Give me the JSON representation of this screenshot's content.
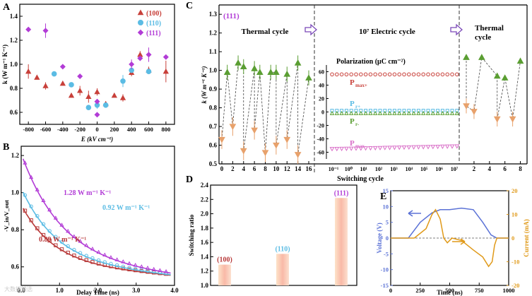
{
  "watermark": "大数据精选",
  "colors": {
    "red": "#c8403a",
    "cyan": "#5bbce4",
    "magenta": "#b23cd6",
    "green": "#5a9e32",
    "orange": "#e8a16b",
    "darkred": "#b83a3a",
    "pink": "#d96fc8",
    "blue": "#5b72d6",
    "amber": "#e09a1a",
    "axis": "#000000",
    "grid_dash": "#333333"
  },
  "chart_data": [
    {
      "panel": "A",
      "type": "scatter",
      "xlabel": "E (kV cm⁻¹)",
      "ylabel": "k (W m⁻¹ K⁻¹)",
      "xlim": [
        -900,
        900
      ],
      "ylim": [
        0.5,
        1.5
      ],
      "xticks": [
        -800,
        -600,
        -400,
        -200,
        0,
        200,
        400,
        600,
        800
      ],
      "yticks": [
        0.6,
        0.8,
        1.0,
        1.2,
        1.4
      ],
      "legend": [
        "(100)",
        "(110)",
        "(111)"
      ],
      "series": [
        {
          "name": "(100)",
          "marker": "triangle",
          "color": "red",
          "points": [
            [
              -800,
              0.94,
              0.06
            ],
            [
              -700,
              0.89,
              0
            ],
            [
              -600,
              0.82,
              0.03
            ],
            [
              -400,
              0.84,
              0
            ],
            [
              -300,
              0.74,
              0
            ],
            [
              -200,
              0.78,
              0.04
            ],
            [
              -100,
              0.73,
              0.05
            ],
            [
              0,
              0.77,
              0.03
            ],
            [
              100,
              0.67,
              0
            ],
            [
              200,
              0.74,
              0
            ],
            [
              300,
              0.72,
              0.03
            ],
            [
              400,
              0.93,
              0.03
            ],
            [
              500,
              1.08,
              0.03
            ],
            [
              600,
              0.95,
              0.03
            ],
            [
              800,
              0.94,
              0.09
            ]
          ]
        },
        {
          "name": "(110)",
          "marker": "circle",
          "color": "cyan",
          "points": [
            [
              -500,
              0.92,
              0
            ],
            [
              -300,
              0.83,
              0
            ],
            [
              -100,
              0.64,
              0
            ],
            [
              0,
              0.66,
              0.03
            ],
            [
              100,
              0.66,
              0
            ],
            [
              300,
              0.86,
              0.05
            ],
            [
              400,
              0.95,
              0
            ],
            [
              600,
              0.94,
              0
            ]
          ]
        },
        {
          "name": "(111)",
          "marker": "diamond",
          "color": "magenta",
          "points": [
            [
              -800,
              1.29,
              0
            ],
            [
              -600,
              1.28,
              0.06
            ],
            [
              -400,
              0.98,
              0
            ],
            [
              -200,
              0.9,
              0
            ],
            [
              0,
              0.58,
              0
            ],
            [
              0,
              0.69,
              0
            ],
            [
              400,
              1.0,
              0.04
            ],
            [
              500,
              1.05,
              0
            ],
            [
              600,
              1.08,
              0.06
            ],
            [
              800,
              1.06,
              0
            ]
          ]
        }
      ]
    },
    {
      "panel": "B",
      "type": "line",
      "xlabel": "Delay Time (ns)",
      "ylabel": "-V_in/V_out",
      "xlim": [
        0,
        4
      ],
      "ylim": [
        0.5,
        1.25
      ],
      "xticks": [
        0.0,
        1.0,
        2.0,
        3.0,
        4.0
      ],
      "yticks": [
        0.6,
        0.8,
        1.0,
        1.2
      ],
      "series": [
        {
          "name": "0.89 W m⁻¹ K⁻¹",
          "marker": "square",
          "color": "darkred",
          "a": 0.315,
          "b": 0.18,
          "c": 1.2,
          "d": 0.07
        },
        {
          "name": "0.92 W m⁻¹ K⁻¹",
          "marker": "circle",
          "color": "cyan",
          "a": 0.4,
          "b": 0.2,
          "c": 1.1,
          "d": 0.075
        },
        {
          "name": "1.28 W m⁻¹ K⁻¹",
          "marker": "triangle",
          "color": "magenta",
          "a": 0.58,
          "b": 0.25,
          "c": 0.95,
          "d": 0.08
        }
      ],
      "labels": [
        "1.28 W m⁻¹ K⁻¹",
        "0.92 W m⁻¹ K⁻¹",
        "0.89 W m⁻¹ K⁻¹"
      ]
    },
    {
      "panel": "C",
      "type": "scatter",
      "tag": "(111)",
      "ylabel": "k (W m⁻¹ K⁻¹)",
      "xlabel": "Switching cycle",
      "ylim": [
        0.5,
        1.35
      ],
      "yticks": [
        0.5,
        0.6,
        0.7,
        0.8,
        0.9,
        1.0,
        1.1,
        1.2,
        1.3
      ],
      "sections": [
        "Thermal cycle",
        "10⁷ Electric cycle",
        "Thermal cycle"
      ],
      "left_xticks": [
        0,
        2,
        4,
        6,
        8,
        10,
        12,
        14,
        16
      ],
      "high": [
        [
          1,
          0.99
        ],
        [
          3,
          1.04
        ],
        [
          4,
          1.02
        ],
        [
          6,
          1.01
        ],
        [
          7,
          0.99
        ],
        [
          9,
          0.99
        ],
        [
          10,
          0.99
        ],
        [
          12,
          0.98
        ],
        [
          14,
          1.04
        ],
        [
          16,
          0.96
        ]
      ],
      "low": [
        [
          0,
          0.63
        ],
        [
          2,
          0.7
        ],
        [
          4,
          0.57
        ],
        [
          6,
          0.68
        ],
        [
          8,
          0.56
        ],
        [
          10,
          0.6
        ],
        [
          12,
          0.63
        ],
        [
          14,
          0.55
        ]
      ],
      "right_xticks": [
        2,
        4,
        6,
        8
      ],
      "right_high": [
        [
          3,
          1.07
        ],
        [
          6,
          0.96
        ],
        [
          8,
          1.05
        ]
      ],
      "right_low": [
        [
          1,
          0.81
        ],
        [
          2,
          0.78
        ],
        [
          5,
          0.74
        ],
        [
          7,
          0.74
        ]
      ],
      "right_high2": [
        [
          1,
          1.07
        ],
        [
          5,
          0.97
        ]
      ],
      "polarization": {
        "title": "Polarization (μC cm⁻²)",
        "yticks": [
          -60,
          -40,
          -20,
          0,
          20,
          40,
          60
        ],
        "xticks": [
          "10⁻¹",
          "10⁰",
          "10¹",
          "10²",
          "10³",
          "10⁴",
          "10⁵",
          "10⁶",
          "10⁷"
        ],
        "series": [
          {
            "name": "Pmax+",
            "value": 56,
            "color": "red"
          },
          {
            "name": "Pr+",
            "value": 2,
            "color": "cyan"
          },
          {
            "name": "Pr-",
            "value": -2,
            "color": "green"
          },
          {
            "name": "Pmax-",
            "value": -55,
            "color": "pink"
          }
        ]
      }
    },
    {
      "panel": "D",
      "type": "bar",
      "ylabel": "Switching ratio",
      "ylim": [
        1.0,
        2.4
      ],
      "yticks": [
        1.0,
        1.2,
        1.4,
        1.6,
        1.8,
        2.0,
        2.2,
        2.4
      ],
      "categories": [
        "(100)",
        "(110)",
        "(111)"
      ],
      "values": [
        1.29,
        1.44,
        2.22
      ]
    },
    {
      "panel": "E",
      "type": "line",
      "xlabel": "Time (ns)",
      "ylabel": "Voltage (V)",
      "ylabel2": "Current (mA)",
      "xlim": [
        0,
        1000
      ],
      "ylim": [
        -15,
        15
      ],
      "ylim2": [
        -20,
        20
      ],
      "xticks": [
        0,
        250,
        500,
        750,
        1000
      ],
      "yticks": [
        -15,
        -10,
        -5,
        0,
        5,
        10,
        15
      ],
      "yticks2": [
        -20,
        -10,
        0,
        10,
        20
      ],
      "voltage": [
        [
          0,
          0
        ],
        [
          150,
          0
        ],
        [
          250,
          5
        ],
        [
          350,
          8
        ],
        [
          420,
          9
        ],
        [
          500,
          9
        ],
        [
          600,
          9.5
        ],
        [
          700,
          9
        ],
        [
          780,
          5
        ],
        [
          850,
          1
        ],
        [
          900,
          0
        ],
        [
          1000,
          0
        ]
      ],
      "current": [
        [
          0,
          0
        ],
        [
          200,
          0
        ],
        [
          300,
          4
        ],
        [
          350,
          10
        ],
        [
          380,
          12
        ],
        [
          420,
          8
        ],
        [
          450,
          0
        ],
        [
          480,
          -2
        ],
        [
          520,
          0
        ],
        [
          600,
          -1
        ],
        [
          650,
          -3
        ],
        [
          700,
          -5
        ],
        [
          780,
          -8
        ],
        [
          830,
          -12
        ],
        [
          860,
          -10
        ],
        [
          880,
          -3
        ],
        [
          900,
          0
        ],
        [
          1000,
          0
        ]
      ]
    }
  ]
}
